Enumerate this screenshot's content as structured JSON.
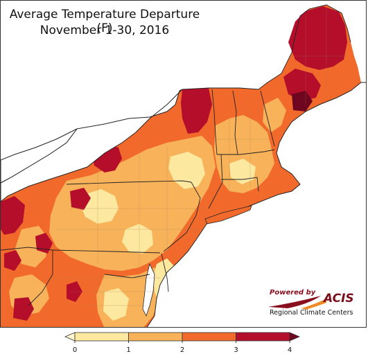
{
  "title": {
    "line1": "Average Temperature Departure (F)",
    "line2": "November 1-30, 2016"
  },
  "logo": {
    "powered_by": "Powered by",
    "name": "ACIS",
    "subtitle": "Regional Climate Centers"
  },
  "legend": {
    "bins": [
      {
        "from": 0,
        "to": 1,
        "color": "#fde8a0"
      },
      {
        "from": 1,
        "to": 2,
        "color": "#f8b35a"
      },
      {
        "from": 2,
        "to": 3,
        "color": "#f16a2c"
      },
      {
        "from": 3,
        "to": 4,
        "color": "#b50e2b"
      }
    ],
    "tick_labels": [
      "0",
      "1",
      "2",
      "3",
      "4"
    ],
    "under_color": "#fff6cf",
    "over_color": "#6e0620"
  },
  "map_colors": {
    "water": "#ffffff",
    "outline": "#222222",
    "county_line": "#a07850"
  }
}
